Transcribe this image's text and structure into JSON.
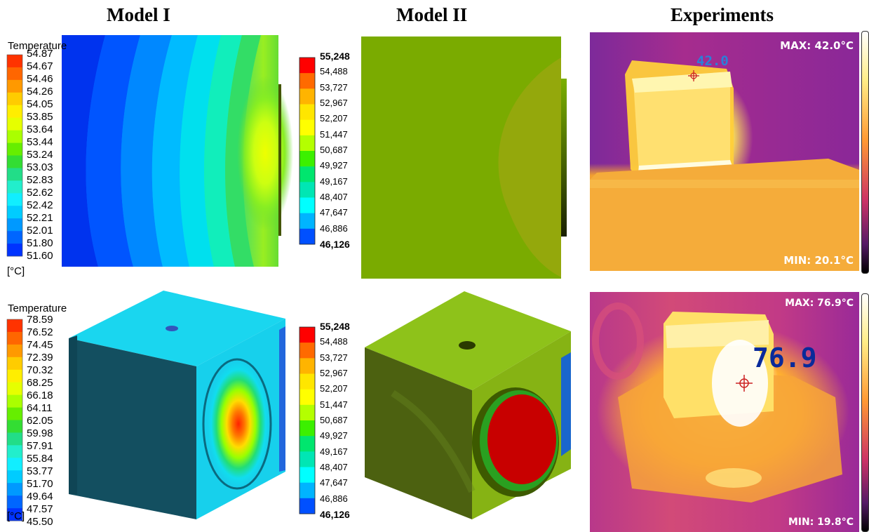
{
  "headers": {
    "model1": "Model I",
    "model2": "Model II",
    "experiments": "Experiments"
  },
  "model1_top": {
    "legend_title": "Temperature",
    "unit": "[°C]",
    "ticks": [
      "54.87",
      "54.67",
      "54.46",
      "54.26",
      "54.05",
      "53.85",
      "53.64",
      "53.44",
      "53.24",
      "53.03",
      "52.83",
      "52.62",
      "52.42",
      "52.21",
      "52.01",
      "51.80",
      "51.60"
    ]
  },
  "model1_bottom": {
    "legend_title": "Temperature",
    "unit": "[°C]",
    "ticks": [
      "78.59",
      "76.52",
      "74.45",
      "72.39",
      "70.32",
      "68.25",
      "66.18",
      "64.11",
      "62.05",
      "59.98",
      "57.91",
      "55.84",
      "53.77",
      "51.70",
      "49.64",
      "47.57",
      "45.50"
    ]
  },
  "model2_legend": {
    "ticks": [
      "55,248",
      "54,488",
      "53,727",
      "52,967",
      "52,207",
      "51,447",
      "50,687",
      "49,927",
      "49,167",
      "48,407",
      "47,647",
      "46,886",
      "46,126"
    ]
  },
  "experiment_top": {
    "max_label": "MAX: 42.0°C",
    "min_label": "MIN: 20.1°C",
    "spot_value": "42.0"
  },
  "experiment_bottom": {
    "max_label": "MAX: 76.9°C",
    "min_label": "MIN: 19.8°C",
    "spot_value": "76.9"
  },
  "colors": {
    "scale1": [
      "#ff3300",
      "#ff6600",
      "#ff9900",
      "#ffcc00",
      "#ffee00",
      "#e6ff00",
      "#aaff00",
      "#66ee00",
      "#33dd33",
      "#22dd88",
      "#22eecc",
      "#11eeff",
      "#00ccff",
      "#0099ff",
      "#0066ff",
      "#0033ff"
    ],
    "scale2": [
      "#ff0000",
      "#ff6a00",
      "#ffb400",
      "#ffe600",
      "#ffff00",
      "#b4ff00",
      "#3cf000",
      "#00e66e",
      "#00e6b4",
      "#00ffff",
      "#00b4ff",
      "#0050ff"
    ]
  }
}
